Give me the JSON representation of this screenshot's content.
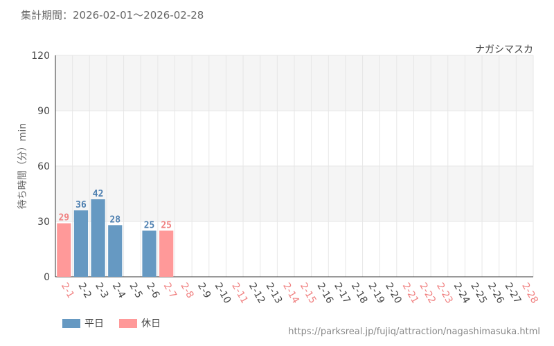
{
  "header": {
    "period": "集計期間：2026-02-01〜2026-02-28"
  },
  "footer": {
    "source_url": "https://parksreal.jp/fujiq/attraction/nagashimasuka.html"
  },
  "colors": {
    "weekday": "#6699c2",
    "holiday": "#ff9999",
    "weekday_text": "#4d7fb0",
    "holiday_text": "#f08080",
    "grid_band": "#f5f5f5",
    "grid_line": "#e6e6e6"
  },
  "chart_data": {
    "type": "bar",
    "title": "ナガシマスカ",
    "ylabel": "待ち時間（分）min",
    "xlabel": "",
    "ylim": [
      0,
      120
    ],
    "yticks": [
      0,
      30,
      60,
      90,
      120
    ],
    "grid": true,
    "legend_position": "bottom-left",
    "legend": [
      {
        "name": "平日",
        "day_type": "weekday"
      },
      {
        "name": "休日",
        "day_type": "holiday"
      }
    ],
    "categories": [
      "2-1",
      "2-2",
      "2-3",
      "2-4",
      "2-5",
      "2-6",
      "2-7",
      "2-8",
      "2-9",
      "2-10",
      "2-11",
      "2-12",
      "2-13",
      "2-14",
      "2-15",
      "2-16",
      "2-17",
      "2-18",
      "2-19",
      "2-20",
      "2-21",
      "2-22",
      "2-23",
      "2-24",
      "2-25",
      "2-26",
      "2-27",
      "2-28"
    ],
    "day_types": [
      "holiday",
      "weekday",
      "weekday",
      "weekday",
      "weekday",
      "weekday",
      "holiday",
      "holiday",
      "weekday",
      "weekday",
      "holiday",
      "weekday",
      "weekday",
      "holiday",
      "holiday",
      "weekday",
      "weekday",
      "weekday",
      "weekday",
      "weekday",
      "holiday",
      "holiday",
      "holiday",
      "weekday",
      "weekday",
      "weekday",
      "weekday",
      "holiday"
    ],
    "values": [
      29,
      36,
      42,
      28,
      null,
      25,
      25,
      null,
      null,
      null,
      null,
      null,
      null,
      null,
      null,
      null,
      null,
      null,
      null,
      null,
      null,
      null,
      null,
      null,
      null,
      null,
      null,
      null
    ]
  }
}
